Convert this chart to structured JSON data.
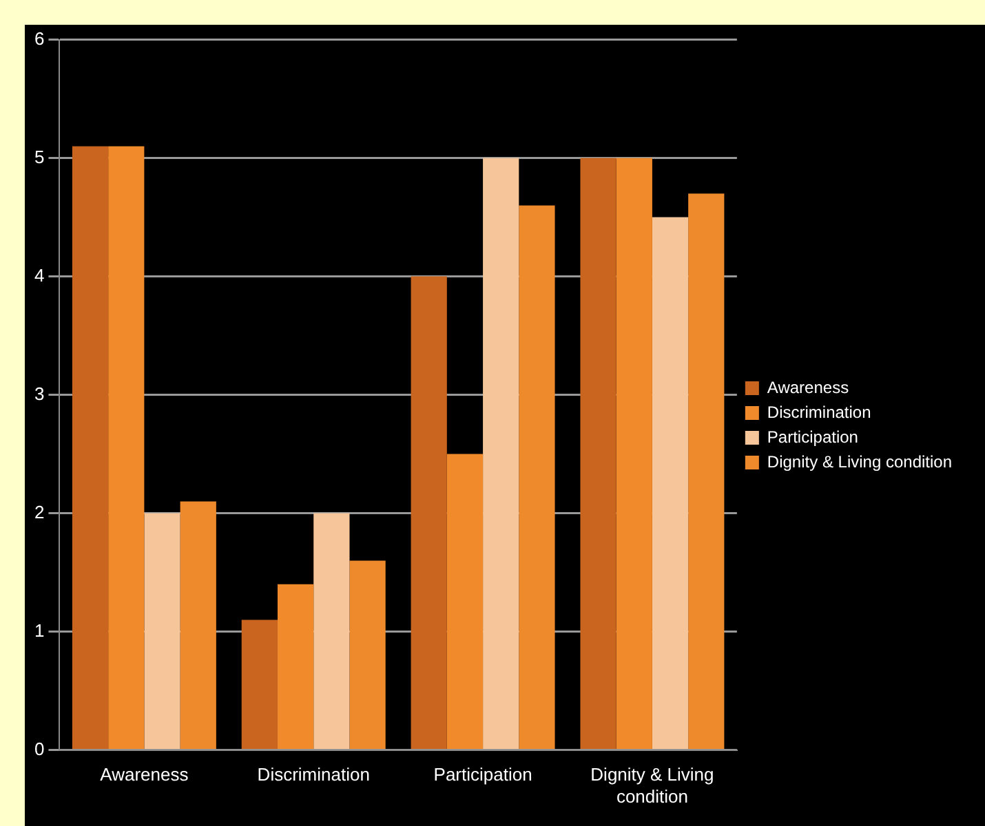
{
  "chart_data": {
    "type": "bar",
    "categories": [
      "Awareness",
      "Discrimination",
      "Participation",
      "Dignity & Living condition"
    ],
    "series": [
      {
        "name": "Awareness",
        "color": "#c9651f",
        "values": [
          5.1,
          1.1,
          4.0,
          5.0
        ]
      },
      {
        "name": "Discrimination",
        "color": "#f08a2a",
        "values": [
          5.1,
          1.4,
          2.5,
          5.0
        ]
      },
      {
        "name": "Participation",
        "color": "#f7c59a",
        "values": [
          2.0,
          2.0,
          5.0,
          4.5
        ]
      },
      {
        "name": "Dignity & Living condition",
        "color": "#ee8a2c",
        "values": [
          2.1,
          1.6,
          4.6,
          4.7
        ]
      }
    ],
    "ylim": [
      0,
      6
    ],
    "yticks": [
      0,
      1,
      2,
      3,
      4,
      5,
      6
    ],
    "grid": "y",
    "legend": "right"
  }
}
